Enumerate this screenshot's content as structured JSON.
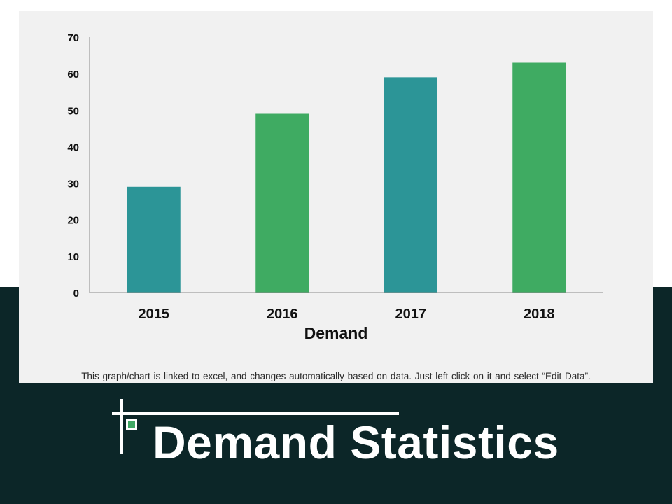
{
  "page_title": "Demand Statistics",
  "note": "This graph/chart is linked to excel, and changes automatically based on data. Just left click on it and select “Edit Data”.",
  "colors": {
    "background_band": "#0c2628",
    "teal": "#2c9597",
    "green": "#3fab62",
    "panel": "#f1f1f1"
  },
  "chart_data": {
    "type": "bar",
    "categories": [
      "2015",
      "2016",
      "2017",
      "2018"
    ],
    "series": [
      {
        "name": "Demand",
        "values": [
          29,
          49,
          59,
          63
        ]
      }
    ],
    "bar_colors": [
      "#2c9597",
      "#3fab62",
      "#2c9597",
      "#3fab62"
    ],
    "xlabel": "Demand",
    "ylabel": "",
    "ylim": [
      0,
      70
    ],
    "yticks": [
      0,
      10,
      20,
      30,
      40,
      50,
      60,
      70
    ],
    "grid": false,
    "legend": "none"
  }
}
